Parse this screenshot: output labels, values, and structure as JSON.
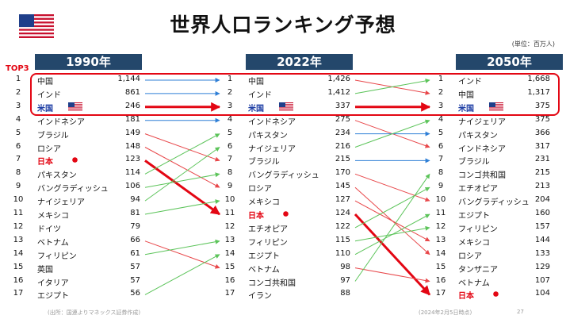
{
  "title": "世界人口ランキング予想",
  "unit": "(単位：百万人)",
  "top3_label": "TOP3",
  "footnote_source": "(出所：国連よりマネックス証券作成)",
  "footnote_date": "(2024年2月5日時点)",
  "page_number": "27",
  "colors": {
    "header": "#24476b",
    "accent_red": "#e30613",
    "us_blue": "#1f3fa5",
    "arrow_blue": "#2f7fd6",
    "arrow_red": "#e8474a",
    "arrow_green": "#5cc45a"
  },
  "chart_data": {
    "type": "table",
    "columns": [
      {
        "year": "1990年",
        "rows": [
          {
            "rank": "1",
            "country": "中国",
            "value": "1,144"
          },
          {
            "rank": "2",
            "country": "インド",
            "value": "861"
          },
          {
            "rank": "3",
            "country": "米国",
            "value": "246"
          },
          {
            "rank": "4",
            "country": "インドネシア",
            "value": "181"
          },
          {
            "rank": "5",
            "country": "ブラジル",
            "value": "149"
          },
          {
            "rank": "6",
            "country": "ロシア",
            "value": "148"
          },
          {
            "rank": "7",
            "country": "日本",
            "value": "123"
          },
          {
            "rank": "8",
            "country": "パキスタン",
            "value": "114"
          },
          {
            "rank": "9",
            "country": "バングラディッシュ",
            "value": "106"
          },
          {
            "rank": "10",
            "country": "ナイジェリア",
            "value": "94"
          },
          {
            "rank": "11",
            "country": "メキシコ",
            "value": "81"
          },
          {
            "rank": "12",
            "country": "ドイツ",
            "value": "79"
          },
          {
            "rank": "13",
            "country": "ベトナム",
            "value": "66"
          },
          {
            "rank": "14",
            "country": "フィリピン",
            "value": "61"
          },
          {
            "rank": "15",
            "country": "英国",
            "value": "57"
          },
          {
            "rank": "16",
            "country": "イタリア",
            "value": "57"
          },
          {
            "rank": "17",
            "country": "エジプト",
            "value": "56"
          }
        ]
      },
      {
        "year": "2022年",
        "rows": [
          {
            "rank": "1",
            "country": "中国",
            "value": "1,426"
          },
          {
            "rank": "2",
            "country": "インド",
            "value": "1,412"
          },
          {
            "rank": "3",
            "country": "米国",
            "value": "337"
          },
          {
            "rank": "4",
            "country": "インドネシア",
            "value": "275"
          },
          {
            "rank": "5",
            "country": "パキスタン",
            "value": "234"
          },
          {
            "rank": "6",
            "country": "ナイジェリア",
            "value": "216"
          },
          {
            "rank": "7",
            "country": "ブラジル",
            "value": "215"
          },
          {
            "rank": "8",
            "country": "バングラディッシュ",
            "value": "170"
          },
          {
            "rank": "9",
            "country": "ロシア",
            "value": "145"
          },
          {
            "rank": "10",
            "country": "メキシコ",
            "value": "127"
          },
          {
            "rank": "11",
            "country": "日本",
            "value": "124"
          },
          {
            "rank": "12",
            "country": "エチオピア",
            "value": "122"
          },
          {
            "rank": "13",
            "country": "フィリピン",
            "value": "115"
          },
          {
            "rank": "14",
            "country": "エジプト",
            "value": "110"
          },
          {
            "rank": "15",
            "country": "ベトナム",
            "value": "98"
          },
          {
            "rank": "16",
            "country": "コンゴ共和国",
            "value": "97"
          },
          {
            "rank": "17",
            "country": "イラン",
            "value": "88"
          }
        ]
      },
      {
        "year": "2050年",
        "rows": [
          {
            "rank": "1",
            "country": "インド",
            "value": "1,668"
          },
          {
            "rank": "2",
            "country": "中国",
            "value": "1,317"
          },
          {
            "rank": "3",
            "country": "米国",
            "value": "375"
          },
          {
            "rank": "4",
            "country": "ナイジェリア",
            "value": "375"
          },
          {
            "rank": "5",
            "country": "パキスタン",
            "value": "366"
          },
          {
            "rank": "6",
            "country": "インドネシア",
            "value": "317"
          },
          {
            "rank": "7",
            "country": "ブラジル",
            "value": "231"
          },
          {
            "rank": "8",
            "country": "コンゴ共和国",
            "value": "215"
          },
          {
            "rank": "9",
            "country": "エチオピア",
            "value": "213"
          },
          {
            "rank": "10",
            "country": "バングラディッシュ",
            "value": "204"
          },
          {
            "rank": "11",
            "country": "エジプト",
            "value": "160"
          },
          {
            "rank": "12",
            "country": "フィリピン",
            "value": "157"
          },
          {
            "rank": "13",
            "country": "メキシコ",
            "value": "144"
          },
          {
            "rank": "14",
            "country": "ロシア",
            "value": "133"
          },
          {
            "rank": "15",
            "country": "タンザニア",
            "value": "129"
          },
          {
            "rank": "16",
            "country": "ベトナム",
            "value": "107"
          },
          {
            "rank": "17",
            "country": "日本",
            "value": "104"
          }
        ]
      }
    ],
    "transitions": [
      {
        "from": "1990年",
        "to": "2022年",
        "links": [
          {
            "from": 1,
            "to": 1,
            "trend": "same"
          },
          {
            "from": 2,
            "to": 2,
            "trend": "same"
          },
          {
            "from": 3,
            "to": 3,
            "trend": "same",
            "emphasis": true
          },
          {
            "from": 4,
            "to": 4,
            "trend": "same"
          },
          {
            "from": 5,
            "to": 7,
            "trend": "down"
          },
          {
            "from": 6,
            "to": 9,
            "trend": "down"
          },
          {
            "from": 7,
            "to": 11,
            "trend": "down",
            "emphasis": true
          },
          {
            "from": 8,
            "to": 5,
            "trend": "up"
          },
          {
            "from": 9,
            "to": 8,
            "trend": "up"
          },
          {
            "from": 10,
            "to": 6,
            "trend": "up"
          },
          {
            "from": 11,
            "to": 10,
            "trend": "up"
          },
          {
            "from": 13,
            "to": 15,
            "trend": "down"
          },
          {
            "from": 14,
            "to": 13,
            "trend": "up"
          },
          {
            "from": 17,
            "to": 14,
            "trend": "up"
          }
        ]
      },
      {
        "from": "2022年",
        "to": "2050年",
        "links": [
          {
            "from": 1,
            "to": 2,
            "trend": "down"
          },
          {
            "from": 2,
            "to": 1,
            "trend": "up"
          },
          {
            "from": 3,
            "to": 3,
            "trend": "same",
            "emphasis": true
          },
          {
            "from": 4,
            "to": 6,
            "trend": "down"
          },
          {
            "from": 5,
            "to": 5,
            "trend": "same"
          },
          {
            "from": 6,
            "to": 4,
            "trend": "up"
          },
          {
            "from": 7,
            "to": 7,
            "trend": "same"
          },
          {
            "from": 8,
            "to": 10,
            "trend": "down"
          },
          {
            "from": 9,
            "to": 14,
            "trend": "down"
          },
          {
            "from": 10,
            "to": 13,
            "trend": "down"
          },
          {
            "from": 11,
            "to": 17,
            "trend": "down",
            "emphasis": true
          },
          {
            "from": 12,
            "to": 9,
            "trend": "up"
          },
          {
            "from": 13,
            "to": 12,
            "trend": "up"
          },
          {
            "from": 14,
            "to": 11,
            "trend": "up"
          },
          {
            "from": 15,
            "to": 16,
            "trend": "down"
          },
          {
            "from": 16,
            "to": 8,
            "trend": "up"
          }
        ]
      }
    ]
  }
}
